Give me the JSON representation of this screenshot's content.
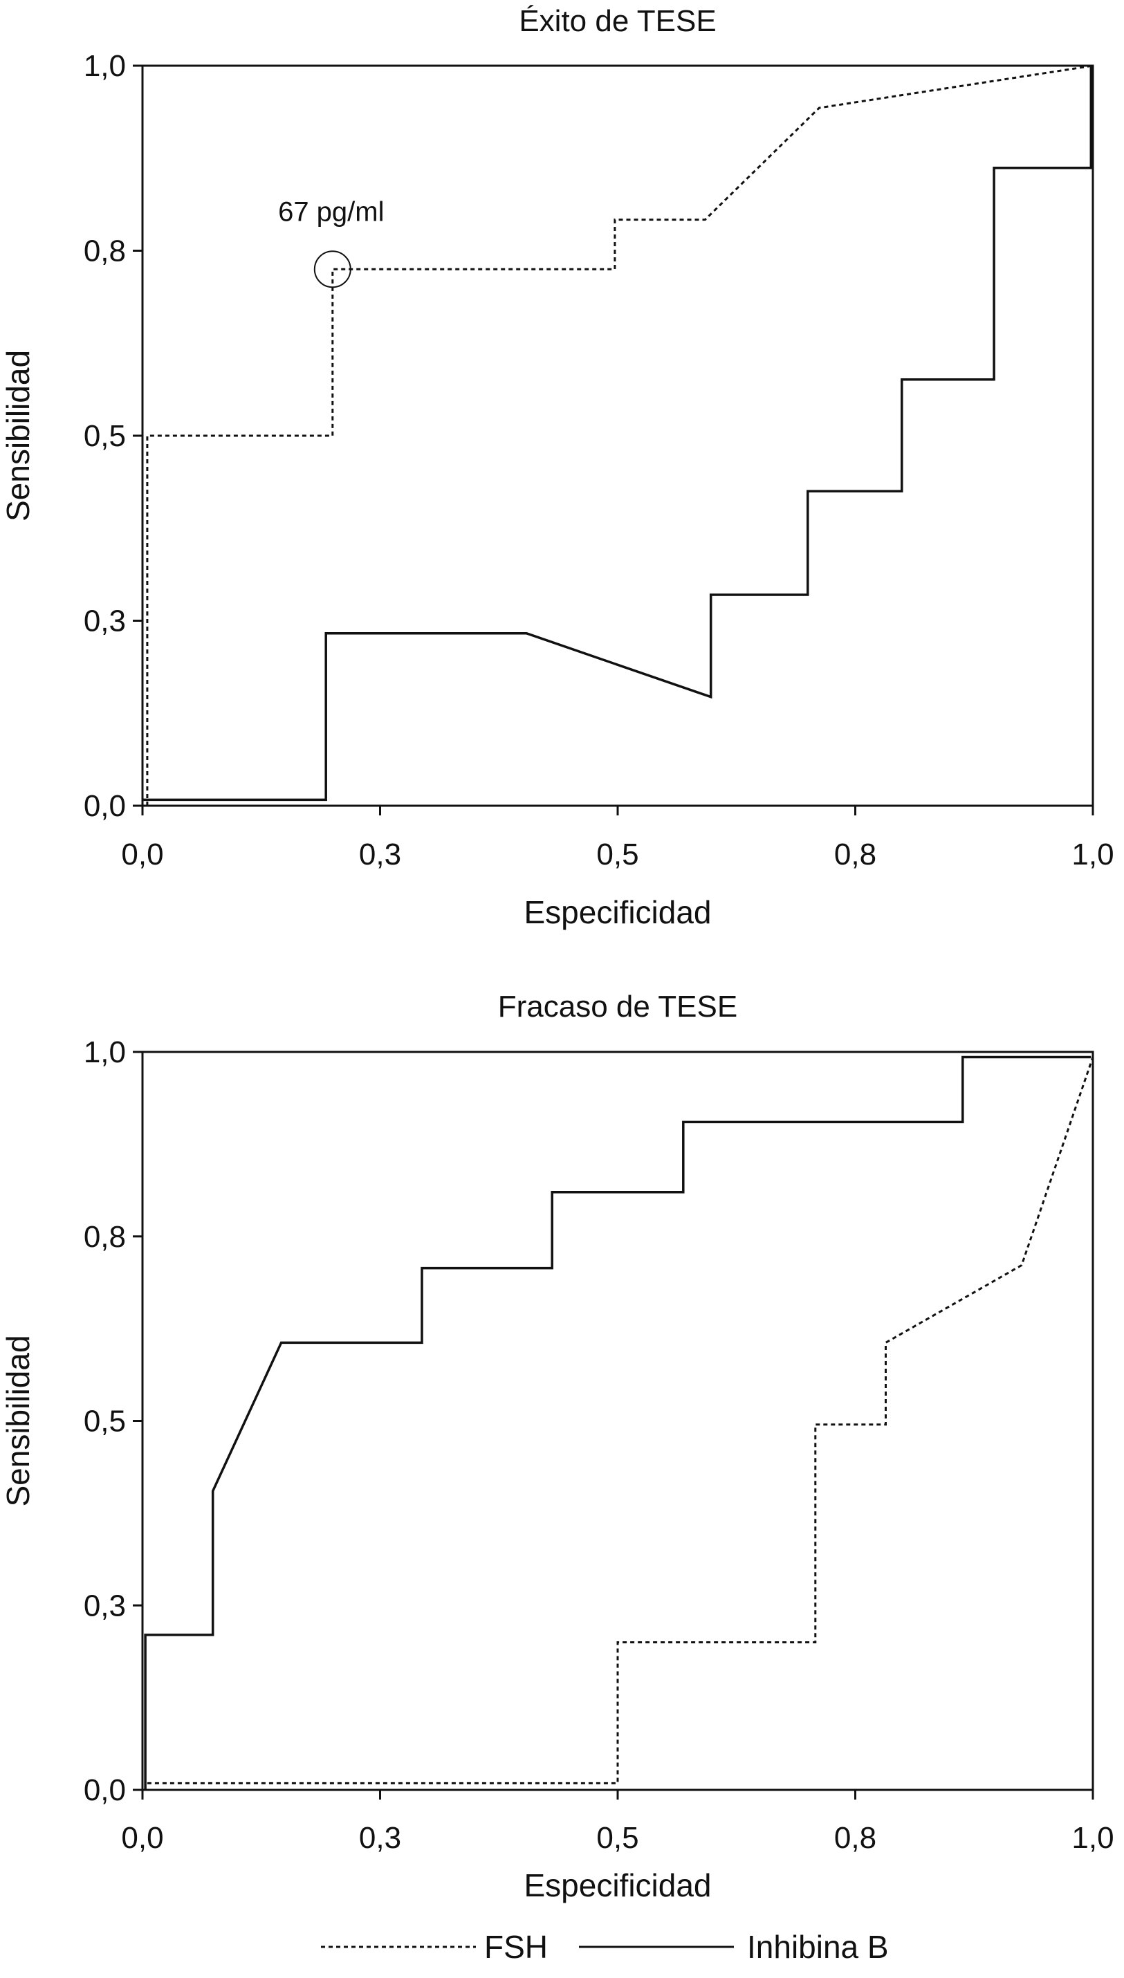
{
  "chart_data": [
    {
      "type": "line",
      "title": "Éxito de TESE",
      "xlabel": "Especificidad",
      "ylabel": "Sensibilidad",
      "xlim": [
        0,
        1
      ],
      "ylim": [
        0,
        1
      ],
      "xticks": [
        0,
        0.25,
        0.5,
        0.75,
        1
      ],
      "xtick_labels": [
        "0,0",
        "0,3",
        "0,5",
        "0,8",
        "1,0"
      ],
      "yticks": [
        0,
        0.25,
        0.5,
        0.75,
        1
      ],
      "ytick_labels": [
        "0,0",
        "0,3",
        "0,5",
        "0,8",
        "1,0"
      ],
      "grid": false,
      "series": [
        {
          "name": "FSH",
          "style": "dashed",
          "points": [
            [
              0.005,
              0
            ],
            [
              0.005,
              0.5
            ],
            [
              0.2,
              0.5
            ],
            [
              0.2,
              0.725
            ],
            [
              0.497,
              0.725
            ],
            [
              0.497,
              0.792
            ],
            [
              0.592,
              0.792
            ],
            [
              0.712,
              0.943
            ],
            [
              1,
              1
            ]
          ]
        },
        {
          "name": "Inhibina B",
          "style": "solid",
          "points": [
            [
              0,
              0.008
            ],
            [
              0.193,
              0.008
            ],
            [
              0.193,
              0.233
            ],
            [
              0.404,
              0.233
            ],
            [
              0.598,
              0.147
            ],
            [
              0.598,
              0.285
            ],
            [
              0.7,
              0.285
            ],
            [
              0.7,
              0.425
            ],
            [
              0.799,
              0.425
            ],
            [
              0.799,
              0.576
            ],
            [
              0.896,
              0.576
            ],
            [
              0.896,
              0.862
            ],
            [
              0.998,
              0.862
            ],
            [
              0.998,
              1
            ]
          ]
        }
      ],
      "annotation": {
        "text": "67 pg/ml",
        "x": 0.2,
        "y": 0.725
      }
    },
    {
      "type": "line",
      "title": "Fracaso de TESE",
      "xlabel": "Especificidad",
      "ylabel": "Sensibilidad",
      "xlim": [
        0,
        1
      ],
      "ylim": [
        0,
        1
      ],
      "xticks": [
        0,
        0.25,
        0.5,
        0.75,
        1
      ],
      "xtick_labels": [
        "0,0",
        "0,3",
        "0,5",
        "0,8",
        "1,0"
      ],
      "yticks": [
        0,
        0.25,
        0.5,
        0.75,
        1
      ],
      "ytick_labels": [
        "0,0",
        "0,3",
        "0,5",
        "0,8",
        "1,0"
      ],
      "grid": false,
      "series": [
        {
          "name": "FSH",
          "style": "dashed",
          "points": [
            [
              0.005,
              0.009
            ],
            [
              0.5,
              0.009
            ],
            [
              0.5,
              0.2
            ],
            [
              0.708,
              0.2
            ],
            [
              0.708,
              0.495
            ],
            [
              0.782,
              0.495
            ],
            [
              0.782,
              0.606
            ],
            [
              0.925,
              0.711
            ],
            [
              1,
              0.993
            ]
          ]
        },
        {
          "name": "Inhibina B",
          "style": "solid",
          "points": [
            [
              0.003,
              0
            ],
            [
              0.003,
              0.21
            ],
            [
              0.074,
              0.21
            ],
            [
              0.074,
              0.405
            ],
            [
              0.146,
              0.606
            ],
            [
              0.294,
              0.606
            ],
            [
              0.294,
              0.707
            ],
            [
              0.431,
              0.707
            ],
            [
              0.431,
              0.81
            ],
            [
              0.569,
              0.81
            ],
            [
              0.569,
              0.905
            ],
            [
              0.863,
              0.905
            ],
            [
              0.863,
              0.993
            ],
            [
              0.998,
              0.993
            ]
          ]
        }
      ]
    }
  ],
  "legend": {
    "placement": "bottom",
    "items": [
      {
        "label": "FSH",
        "style": "dashed"
      },
      {
        "label": "Inhibina B",
        "style": "solid"
      }
    ]
  }
}
